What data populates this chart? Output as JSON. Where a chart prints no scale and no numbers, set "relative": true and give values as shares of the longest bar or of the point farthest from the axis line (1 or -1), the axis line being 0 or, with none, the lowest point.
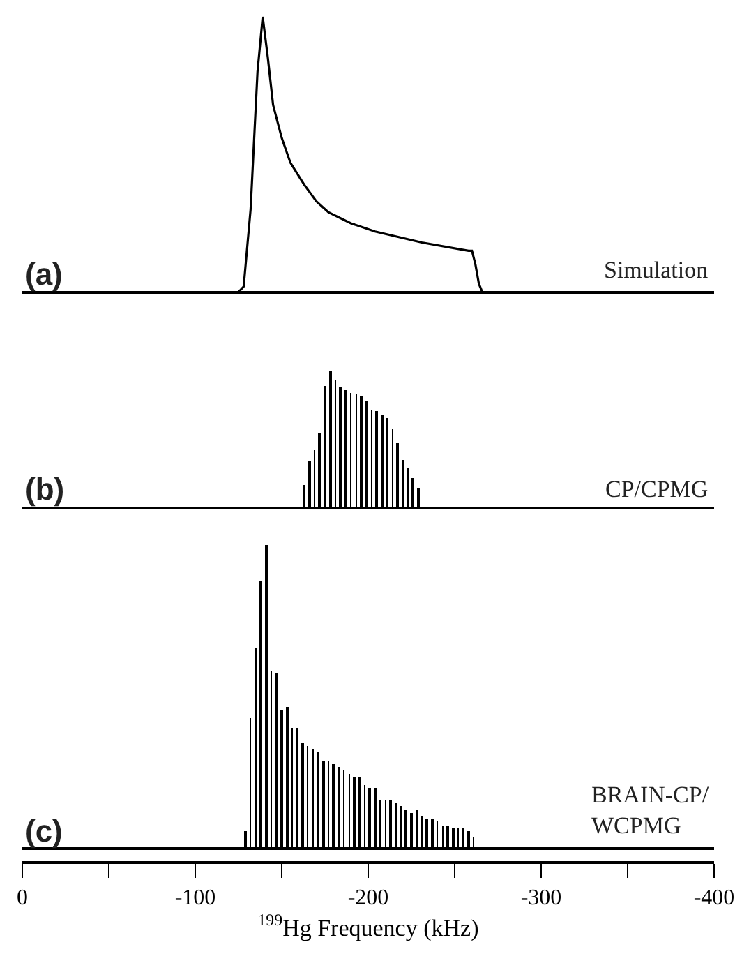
{
  "chart_data": [
    {
      "type": "line",
      "title": "(a)",
      "annotations": [
        "Simulation"
      ],
      "relative": true,
      "xlim": [
        0,
        -400
      ],
      "tick_labels": false,
      "marker": "none",
      "line_style": "solid",
      "series": [
        {
          "color": "#000000",
          "x": [
            0,
            -125,
            -128,
            -132,
            -136,
            -139,
            -142,
            -145,
            -150,
            -155,
            -163,
            -170,
            -177,
            -190,
            -204,
            -231,
            -258,
            -260,
            -262,
            -264,
            -266,
            -400
          ],
          "values": [
            0,
            0,
            0.02,
            0.3,
            0.8,
            1.0,
            0.85,
            0.68,
            0.56,
            0.47,
            0.39,
            0.33,
            0.29,
            0.25,
            0.22,
            0.18,
            0.15,
            0.15,
            0.1,
            0.03,
            0,
            0
          ]
        }
      ]
    },
    {
      "type": "bar",
      "title": "(b)",
      "annotations": [
        "CP/CPMG"
      ],
      "relative": true,
      "xlim": [
        0,
        -400
      ],
      "tick_labels": false,
      "series": [
        {
          "color": "#000000",
          "x": [
            -163,
            -166,
            -169,
            -172,
            -175,
            -178,
            -181,
            -184,
            -187,
            -190,
            -193,
            -196,
            -199,
            -202,
            -205,
            -208,
            -211,
            -214,
            -217,
            -220,
            -223,
            -226,
            -229
          ],
          "values": [
            0.17,
            0.34,
            0.42,
            0.54,
            0.89,
            1.0,
            0.93,
            0.88,
            0.86,
            0.84,
            0.83,
            0.82,
            0.78,
            0.72,
            0.71,
            0.68,
            0.65,
            0.57,
            0.47,
            0.35,
            0.29,
            0.22,
            0.15
          ]
        }
      ]
    },
    {
      "type": "bar",
      "title": "(c)",
      "annotations": [
        "BRAIN-CP/\nWCPMG"
      ],
      "relative": true,
      "xlim": [
        0,
        -400
      ],
      "tick_labels": "x",
      "xlabel": "$^{199}$Hg Frequency (kHz)",
      "xticks": [
        0,
        {
          "value": -50,
          "label": null
        },
        -100,
        {
          "value": -150,
          "label": null
        },
        -200,
        {
          "value": -250,
          "label": null
        },
        -300,
        {
          "value": -350,
          "label": null
        },
        -400
      ],
      "series": [
        {
          "color": "#000000",
          "x": [
            -129,
            -132,
            -135,
            -138,
            -141,
            -144,
            -147,
            -150,
            -153,
            -156,
            -159,
            -162,
            -165,
            -168,
            -171,
            -174,
            -177,
            -180,
            -183,
            -186,
            -189,
            -192,
            -195,
            -198,
            -201,
            -204,
            -207,
            -210,
            -213,
            -216,
            -219,
            -222,
            -225,
            -228,
            -231,
            -234,
            -237,
            -240,
            -243,
            -246,
            -249,
            -252,
            -255,
            -258,
            -261
          ],
          "values": [
            0.06,
            0.43,
            0.66,
            0.88,
            1.0,
            0.59,
            0.58,
            0.46,
            0.47,
            0.4,
            0.4,
            0.35,
            0.34,
            0.33,
            0.32,
            0.29,
            0.29,
            0.28,
            0.27,
            0.26,
            0.25,
            0.24,
            0.24,
            0.21,
            0.2,
            0.2,
            0.16,
            0.16,
            0.16,
            0.15,
            0.14,
            0.13,
            0.12,
            0.13,
            0.11,
            0.1,
            0.1,
            0.09,
            0.08,
            0.08,
            0.07,
            0.07,
            0.07,
            0.06,
            0.04
          ]
        }
      ]
    }
  ]
}
